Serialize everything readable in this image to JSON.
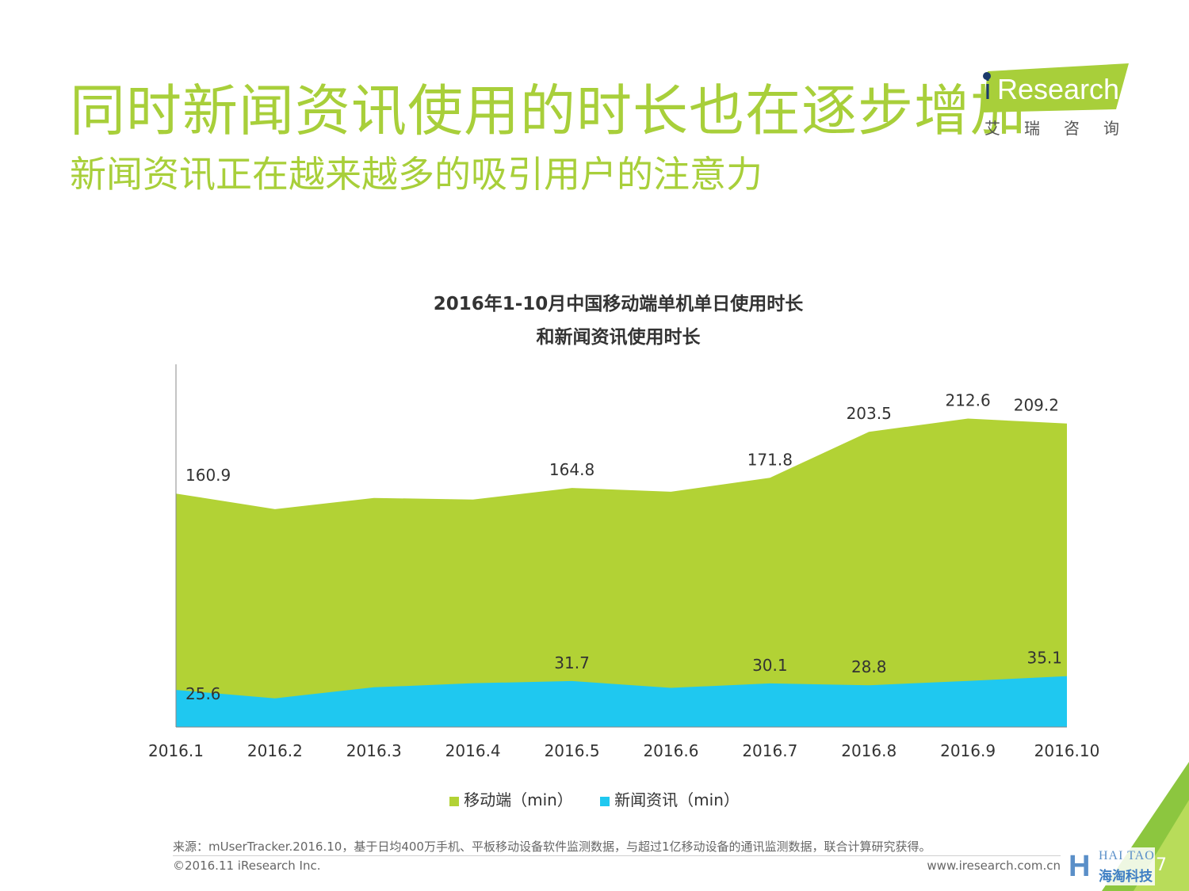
{
  "header": {
    "title": "同时新闻资讯使用的时长也在逐步增加",
    "subtitle": "新闻资讯正在越来越多的吸引用户的注意力"
  },
  "logo": {
    "brand": "Research",
    "brand_i": "i",
    "sub": "艾瑞咨询"
  },
  "chart_data": {
    "type": "area",
    "title_line1": "2016年1-10月中国移动端单机单日使用时长",
    "title_line2": "和新闻资讯使用时长",
    "categories": [
      "2016.1",
      "2016.2",
      "2016.3",
      "2016.4",
      "2016.5",
      "2016.6",
      "2016.7",
      "2016.8",
      "2016.9",
      "2016.10"
    ],
    "series": [
      {
        "name": "移动端（min）",
        "color": "#b2d235",
        "values": [
          160.9,
          150.2,
          157.9,
          156.8,
          164.8,
          162.2,
          171.8,
          203.5,
          212.6,
          209.2
        ],
        "labels": [
          "160.9",
          "",
          "",
          "",
          "164.8",
          "",
          "171.8",
          "203.5",
          "212.6",
          "209.2"
        ]
      },
      {
        "name": "新闻资讯（min）",
        "color": "#1fc8f0",
        "values": [
          25.6,
          19.8,
          27.4,
          30.2,
          31.7,
          27.0,
          30.1,
          28.8,
          31.8,
          35.1
        ],
        "labels": [
          "25.6",
          "",
          "",
          "",
          "31.7",
          "",
          "30.1",
          "28.8",
          "",
          "35.1"
        ]
      }
    ],
    "ylim": [
      0,
      250
    ],
    "grid": false,
    "legend_position": "bottom"
  },
  "footer": {
    "source": "来源：mUserTracker.2016.10，基于日均400万手机、平板移动设备软件监测数据，与超过1亿移动设备的通讯监测数据，联合计算研究获得。",
    "copyright": "©2016.11 iResearch Inc.",
    "website": "www.iresearch.com.cn",
    "page": "7"
  },
  "watermark": {
    "top": "HAI TAO",
    "bottom": "海淘科技",
    "mark": "H"
  }
}
